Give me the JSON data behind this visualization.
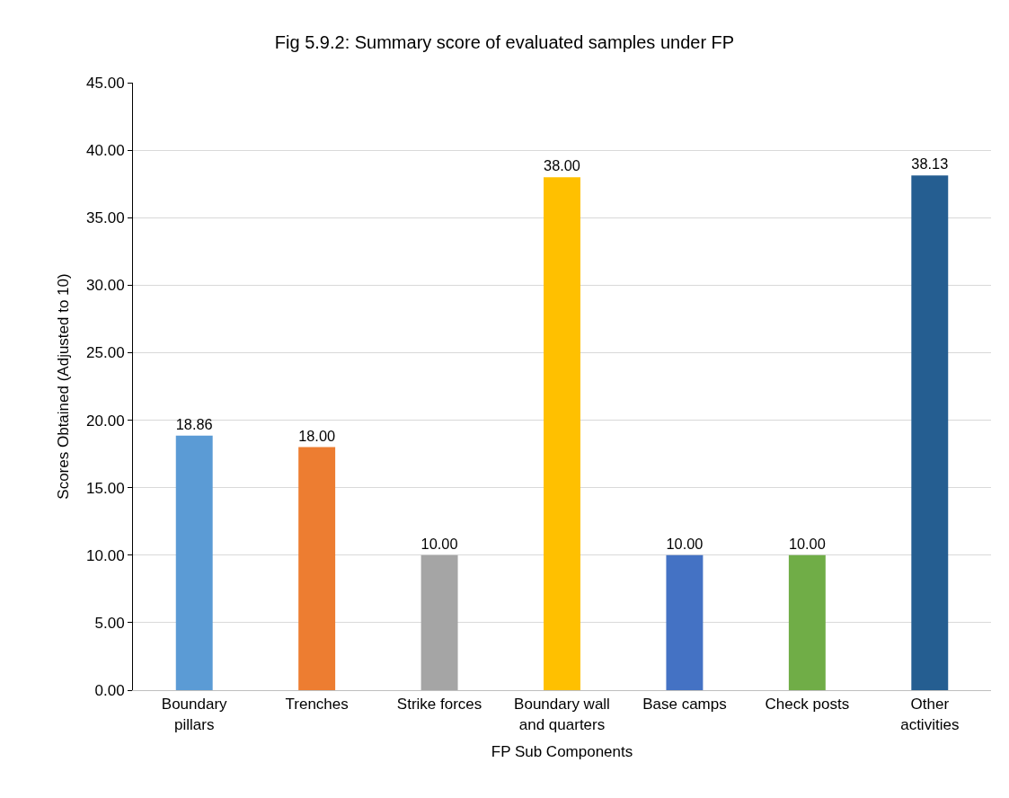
{
  "chart_data": {
    "type": "bar",
    "title": "Fig 5.9.2: Summary score of evaluated samples under FP",
    "xlabel": "FP Sub Components",
    "ylabel": "Scores Obtained (Adjusted to 10)",
    "categories": [
      "Boundary pillars",
      "Trenches",
      "Strike forces",
      "Boundary wall and quarters",
      "Base camps",
      "Check posts",
      "Other activities"
    ],
    "values": [
      18.86,
      18.0,
      10.0,
      38.0,
      10.0,
      10.0,
      38.13
    ],
    "value_labels": [
      "18.86",
      "18.00",
      "10.00",
      "38.00",
      "10.00",
      "10.00",
      "38.13"
    ],
    "colors": [
      "#5b9bd5",
      "#ed7d31",
      "#a5a5a5",
      "#ffc000",
      "#4472c4",
      "#70ad47",
      "#255e91"
    ],
    "ylim": [
      0,
      45
    ],
    "yticks": [
      {
        "value": 0,
        "label": "0.00"
      },
      {
        "value": 5,
        "label": "5.00"
      },
      {
        "value": 10,
        "label": "10.00"
      },
      {
        "value": 15,
        "label": "15.00"
      },
      {
        "value": 20,
        "label": "20.00"
      },
      {
        "value": 25,
        "label": "25.00"
      },
      {
        "value": 30,
        "label": "30.00"
      },
      {
        "value": 35,
        "label": "35.00"
      },
      {
        "value": 40,
        "label": "40.00"
      },
      {
        "value": 45,
        "label": "45.00"
      }
    ],
    "grid": "y",
    "legend": false
  }
}
